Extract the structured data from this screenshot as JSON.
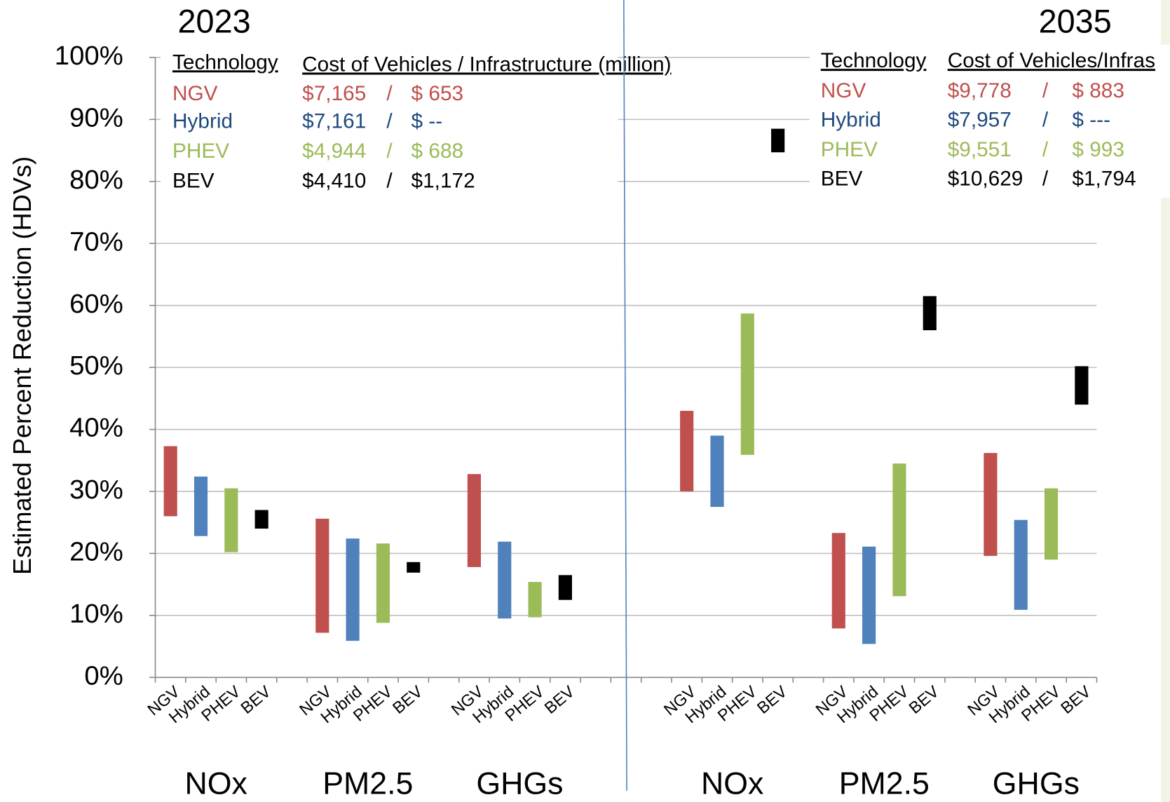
{
  "chart_data": {
    "type": "bar",
    "ylabel": "Estimated Percent Reduction (HDVs)",
    "ylim": [
      0,
      100
    ],
    "yticks": [
      {
        "value": 0,
        "label": "0%"
      },
      {
        "value": 10,
        "label": "10%"
      },
      {
        "value": 20,
        "label": "20%"
      },
      {
        "value": 30,
        "label": "30%"
      },
      {
        "value": 40,
        "label": "40%"
      },
      {
        "value": 50,
        "label": "50%"
      },
      {
        "value": 60,
        "label": "60%"
      },
      {
        "value": 70,
        "label": "70%"
      },
      {
        "value": 80,
        "label": "80%"
      },
      {
        "value": 90,
        "label": "90%"
      },
      {
        "value": 100,
        "label": "100%"
      }
    ],
    "grid": true,
    "panels": [
      "2023",
      "2035"
    ],
    "groups": [
      "NOx",
      "PM2.5",
      "GHGs",
      "NOx",
      "PM2.5",
      "GHGs"
    ],
    "series": [
      {
        "name": "NGV",
        "color": "#c0504d",
        "low": [
          26,
          7.2,
          17.8,
          30,
          7.9,
          19.6
        ],
        "high": [
          37.3,
          25.6,
          32.8,
          43,
          23.3,
          36.2
        ]
      },
      {
        "name": "Hybrid",
        "color": "#4f81bd",
        "low": [
          22.8,
          5.9,
          9.5,
          27.5,
          5.4,
          10.9
        ],
        "high": [
          32.4,
          22.4,
          21.9,
          39,
          21.1,
          25.4
        ]
      },
      {
        "name": "PHEV",
        "color": "#9bbb59",
        "low": [
          20.2,
          8.8,
          9.7,
          35.9,
          13.1,
          19
        ],
        "high": [
          30.5,
          21.6,
          15.4,
          58.7,
          34.5,
          30.5
        ]
      },
      {
        "name": "BEV",
        "color": "#000000",
        "low": [
          24,
          16.9,
          12.5,
          84.7,
          56,
          44
        ],
        "high": [
          27,
          18.6,
          16.5,
          88.5,
          61.5,
          50.2
        ]
      }
    ]
  },
  "tables": [
    {
      "headers": [
        "Technology",
        "Cost of Vehicles / Infrastructure (million)"
      ],
      "separator": "/",
      "rows": [
        [
          "NGV",
          "$7,165",
          "$ 653"
        ],
        [
          "Hybrid",
          "$7,161",
          "$ --"
        ],
        [
          "PHEV",
          "$4,944",
          "$ 688"
        ],
        [
          "BEV",
          "$4,410",
          "$1,172"
        ]
      ]
    },
    {
      "headers": [
        "Technology",
        "Cost of Vehicles/Infras"
      ],
      "separator": "/",
      "rows": [
        [
          "NGV",
          "$9,778",
          "$ 883"
        ],
        [
          "Hybrid",
          "$7,957",
          "$ ---"
        ],
        [
          "PHEV",
          "$9,551",
          "$ 993"
        ],
        [
          "BEV",
          "$10,629",
          "$1,794"
        ]
      ]
    }
  ]
}
